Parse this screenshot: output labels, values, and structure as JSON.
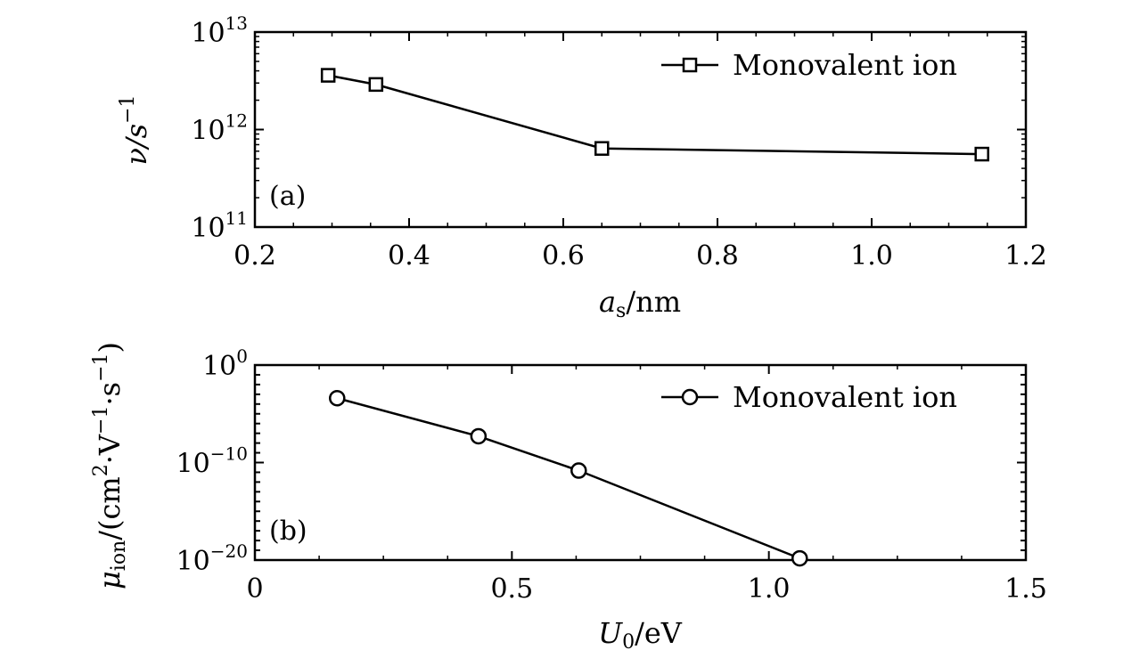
{
  "chart_data": [
    {
      "type": "line",
      "panel_label": "(a)",
      "x": [
        0.295,
        0.357,
        0.65,
        1.143
      ],
      "y": [
        3600000000000.0,
        2900000000000.0,
        640000000000.0,
        560000000000.0
      ],
      "xlim": [
        0.2,
        1.2
      ],
      "ylim": [
        100000000000.0,
        10000000000000.0
      ],
      "yscale": "log",
      "marker": "square",
      "series_name": "Monovalent ion",
      "legend_position": "top-right",
      "x_ticks": [
        "0.2",
        "0.4",
        "0.6",
        "0.8",
        "1.0",
        "1.2"
      ],
      "y_ticks": [
        {
          "base": "10",
          "exp": "11"
        },
        {
          "base": "10",
          "exp": "12"
        },
        {
          "base": "10",
          "exp": "13"
        }
      ],
      "xlabel": {
        "main": "a",
        "sub": "s",
        "rest": "/nm"
      },
      "ylabel": {
        "main": "ν/s",
        "sup": "−1"
      },
      "grid": false
    },
    {
      "type": "line",
      "panel_label": "(b)",
      "x": [
        0.16,
        0.435,
        0.63,
        1.06
      ],
      "y": [
        0.0004,
        5e-08,
        1.5e-11,
        1.5e-20
      ],
      "xlim": [
        0,
        1.5
      ],
      "ylim": [
        1e-20,
        1
      ],
      "yscale": "log",
      "marker": "circle",
      "series_name": "Monovalent ion",
      "legend_position": "top-right",
      "x_ticks": [
        "0",
        "0.5",
        "1.0",
        "1.5"
      ],
      "y_ticks": [
        {
          "base": "10",
          "exp": "−20"
        },
        {
          "base": "10",
          "exp": "−10"
        },
        {
          "base": "10",
          "exp": "0"
        }
      ],
      "xlabel": {
        "main": "U",
        "sub": "0",
        "rest": "/eV"
      },
      "ylabel": {
        "main": "μ",
        "sub": "ion",
        "rest": "/(cm",
        "sup1": "2",
        "mid": "·V",
        "sup2": "−1",
        "mid2": "·s",
        "sup3": "−1",
        "end": ")"
      },
      "grid": false
    }
  ]
}
